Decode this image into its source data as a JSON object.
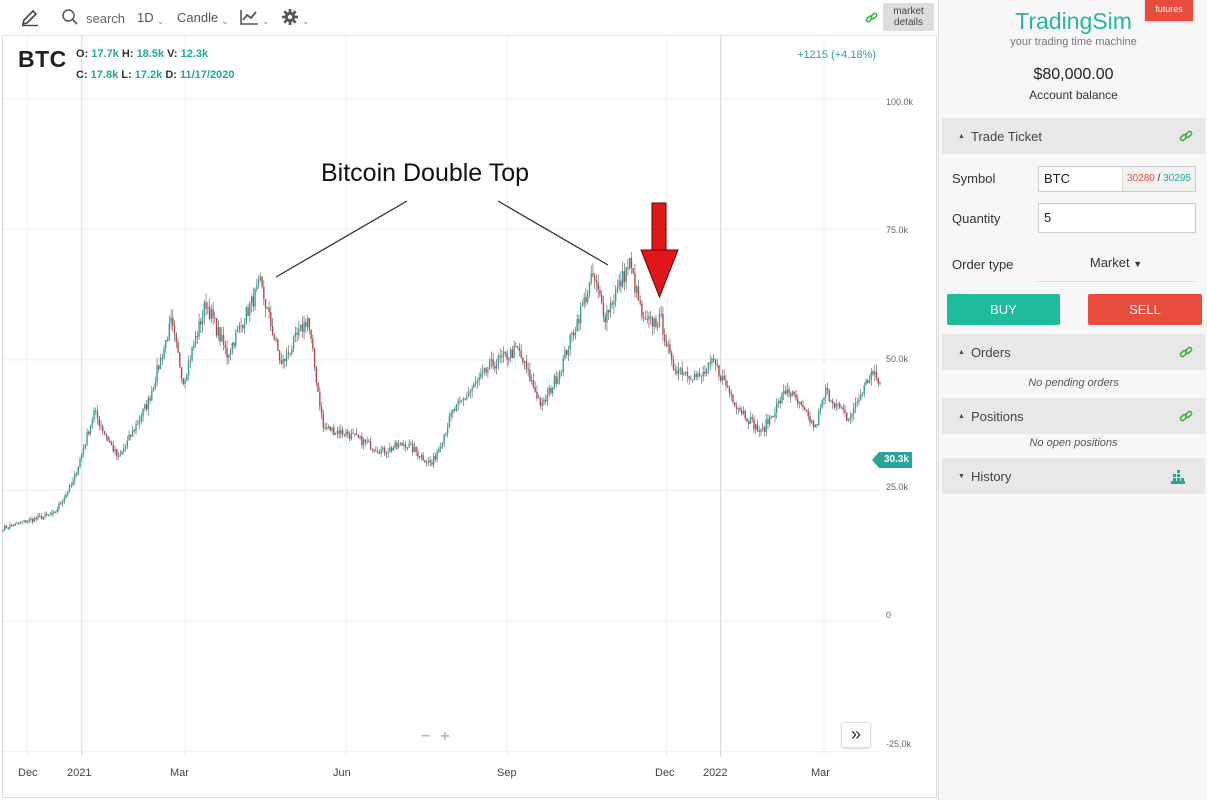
{
  "toolbar": {
    "search_label": "search",
    "interval": "1D",
    "chart_style": "Candle",
    "market_details_line1": "market",
    "market_details_line2": "details"
  },
  "legend": {
    "symbol": "BTC",
    "row1": [
      {
        "label": "O:",
        "value": "17.7k"
      },
      {
        "label": "H:",
        "value": "18.5k"
      },
      {
        "label": "V:",
        "value": "12.3k"
      }
    ],
    "row2": [
      {
        "label": "C:",
        "value": "17.8k"
      },
      {
        "label": "L:",
        "value": "17.2k"
      },
      {
        "label": "D:",
        "value": "11/17/2020"
      }
    ],
    "change": "+1215 (+4.18%)",
    "last_price_tag": "30.3k"
  },
  "annotation": {
    "title": "Bitcoin Double Top",
    "arrow_color": "#e0161b"
  },
  "chart_data": {
    "type": "candlestick",
    "y_tick_labels": [
      "100.0k",
      "75.0k",
      "50.0k",
      "25.0k",
      "0",
      "-25.0k"
    ],
    "y_tick_values": [
      100000,
      75000,
      50000,
      25000,
      0,
      -25000
    ],
    "ylim": [
      -26000,
      112000
    ],
    "x_tick_labels": [
      "Dec",
      "2021",
      "Mar",
      "Jun",
      "Sep",
      "Dec",
      "2022",
      "Mar"
    ],
    "x_tick_dates": [
      "2020-12-01",
      "2021-01-01",
      "2021-03-01",
      "2021-06-01",
      "2021-09-01",
      "2021-12-01",
      "2022-01-01",
      "2022-03-01"
    ],
    "xlim": [
      "2020-11-17",
      "2022-04-02"
    ],
    "up_color": "#26a69a",
    "down_color": "#b8434a",
    "close_path": [
      [
        "2020-11-17",
        17800
      ],
      [
        "2020-12-01",
        19200
      ],
      [
        "2020-12-16",
        20500
      ],
      [
        "2020-12-27",
        26500
      ],
      [
        "2021-01-08",
        40000
      ],
      [
        "2021-01-22",
        31000
      ],
      [
        "2021-02-08",
        42000
      ],
      [
        "2021-02-21",
        57000
      ],
      [
        "2021-02-28",
        46000
      ],
      [
        "2021-03-13",
        61000
      ],
      [
        "2021-03-25",
        51000
      ],
      [
        "2021-04-13",
        64500
      ],
      [
        "2021-04-25",
        49000
      ],
      [
        "2021-05-10",
        58000
      ],
      [
        "2021-05-19",
        37000
      ],
      [
        "2021-06-01",
        36000
      ],
      [
        "2021-06-22",
        32500
      ],
      [
        "2021-07-05",
        34000
      ],
      [
        "2021-07-20",
        30000
      ],
      [
        "2021-08-01",
        40000
      ],
      [
        "2021-08-23",
        49000
      ],
      [
        "2021-09-07",
        52000
      ],
      [
        "2021-09-21",
        41000
      ],
      [
        "2021-10-01",
        48000
      ],
      [
        "2021-10-20",
        66000
      ],
      [
        "2021-10-27",
        58500
      ],
      [
        "2021-11-10",
        68500
      ],
      [
        "2021-11-18",
        57000
      ],
      [
        "2021-11-28",
        57500
      ],
      [
        "2021-12-04",
        49000
      ],
      [
        "2021-12-20",
        46500
      ],
      [
        "2021-12-28",
        49500
      ],
      [
        "2022-01-10",
        41500
      ],
      [
        "2022-01-24",
        36000
      ],
      [
        "2022-02-08",
        44500
      ],
      [
        "2022-02-24",
        37000
      ],
      [
        "2022-03-02",
        44000
      ],
      [
        "2022-03-15",
        38500
      ],
      [
        "2022-03-28",
        47500
      ],
      [
        "2022-04-02",
        45500
      ]
    ]
  },
  "side": {
    "futures_label": "futures",
    "brand": "TradingSim",
    "tagline": "your trading time machine",
    "balance": "$80,000.00",
    "balance_label": "Account balance",
    "trade_ticket": {
      "title": "Trade Ticket",
      "symbol_label": "Symbol",
      "symbol_value": "BTC",
      "bid": "30280",
      "ask": "30295",
      "bid_color": "#e74c3c",
      "ask_color": "#26a69a",
      "quantity_label": "Quantity",
      "quantity_value": "5",
      "order_type_label": "Order type",
      "order_type_value": "Market",
      "buy_label": "BUY",
      "sell_label": "SELL"
    },
    "orders": {
      "title": "Orders",
      "empty": "No pending orders"
    },
    "positions": {
      "title": "Positions",
      "empty": "No open positions"
    },
    "history": {
      "title": "History"
    }
  }
}
